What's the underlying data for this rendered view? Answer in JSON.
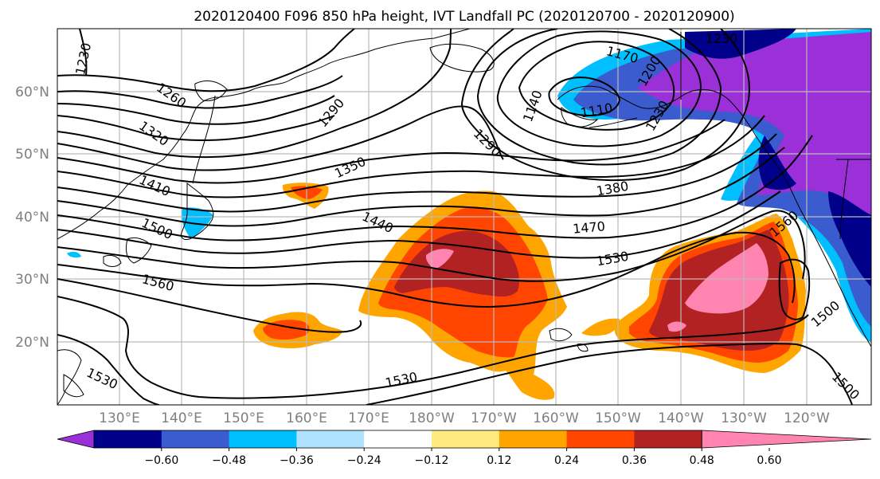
{
  "title": "2020120400 F096 850 hPa height, IVT Landfall PC (2020120700 - 2020120900)",
  "lat_labels": [
    "60°N",
    "50°N",
    "40°N",
    "30°N",
    "20°N"
  ],
  "lon_labels": [
    "130°E",
    "140°E",
    "150°E",
    "160°E",
    "170°E",
    "180°W",
    "170°W",
    "160°W",
    "150°W",
    "140°W",
    "130°W",
    "120°W"
  ],
  "colorbar": {
    "ticks": [
      "−0.60",
      "−0.48",
      "−0.36",
      "−0.24",
      "−0.12",
      "0.12",
      "0.24",
      "0.36",
      "0.48",
      "0.60"
    ],
    "colors": [
      "#9b30d9",
      "#00008b",
      "#3a5ccf",
      "#00bfff",
      "#b0e2ff",
      "#ffffff",
      "#ffeb80",
      "#ffa500",
      "#ff4500",
      "#b22222",
      "#ff85b0"
    ]
  },
  "contour_labels": [
    "1230",
    "1260",
    "1320",
    "1410",
    "1500",
    "1560",
    "1530",
    "1290",
    "1350",
    "1290",
    "1170",
    "1140",
    "1110",
    "1200",
    "1230",
    "1230",
    "1440",
    "1380",
    "1470",
    "1530",
    "1560",
    "1500",
    "1530",
    "1500"
  ],
  "colors": {
    "grid": "#bbbbbb",
    "axis_label": "#7f7f7f"
  }
}
